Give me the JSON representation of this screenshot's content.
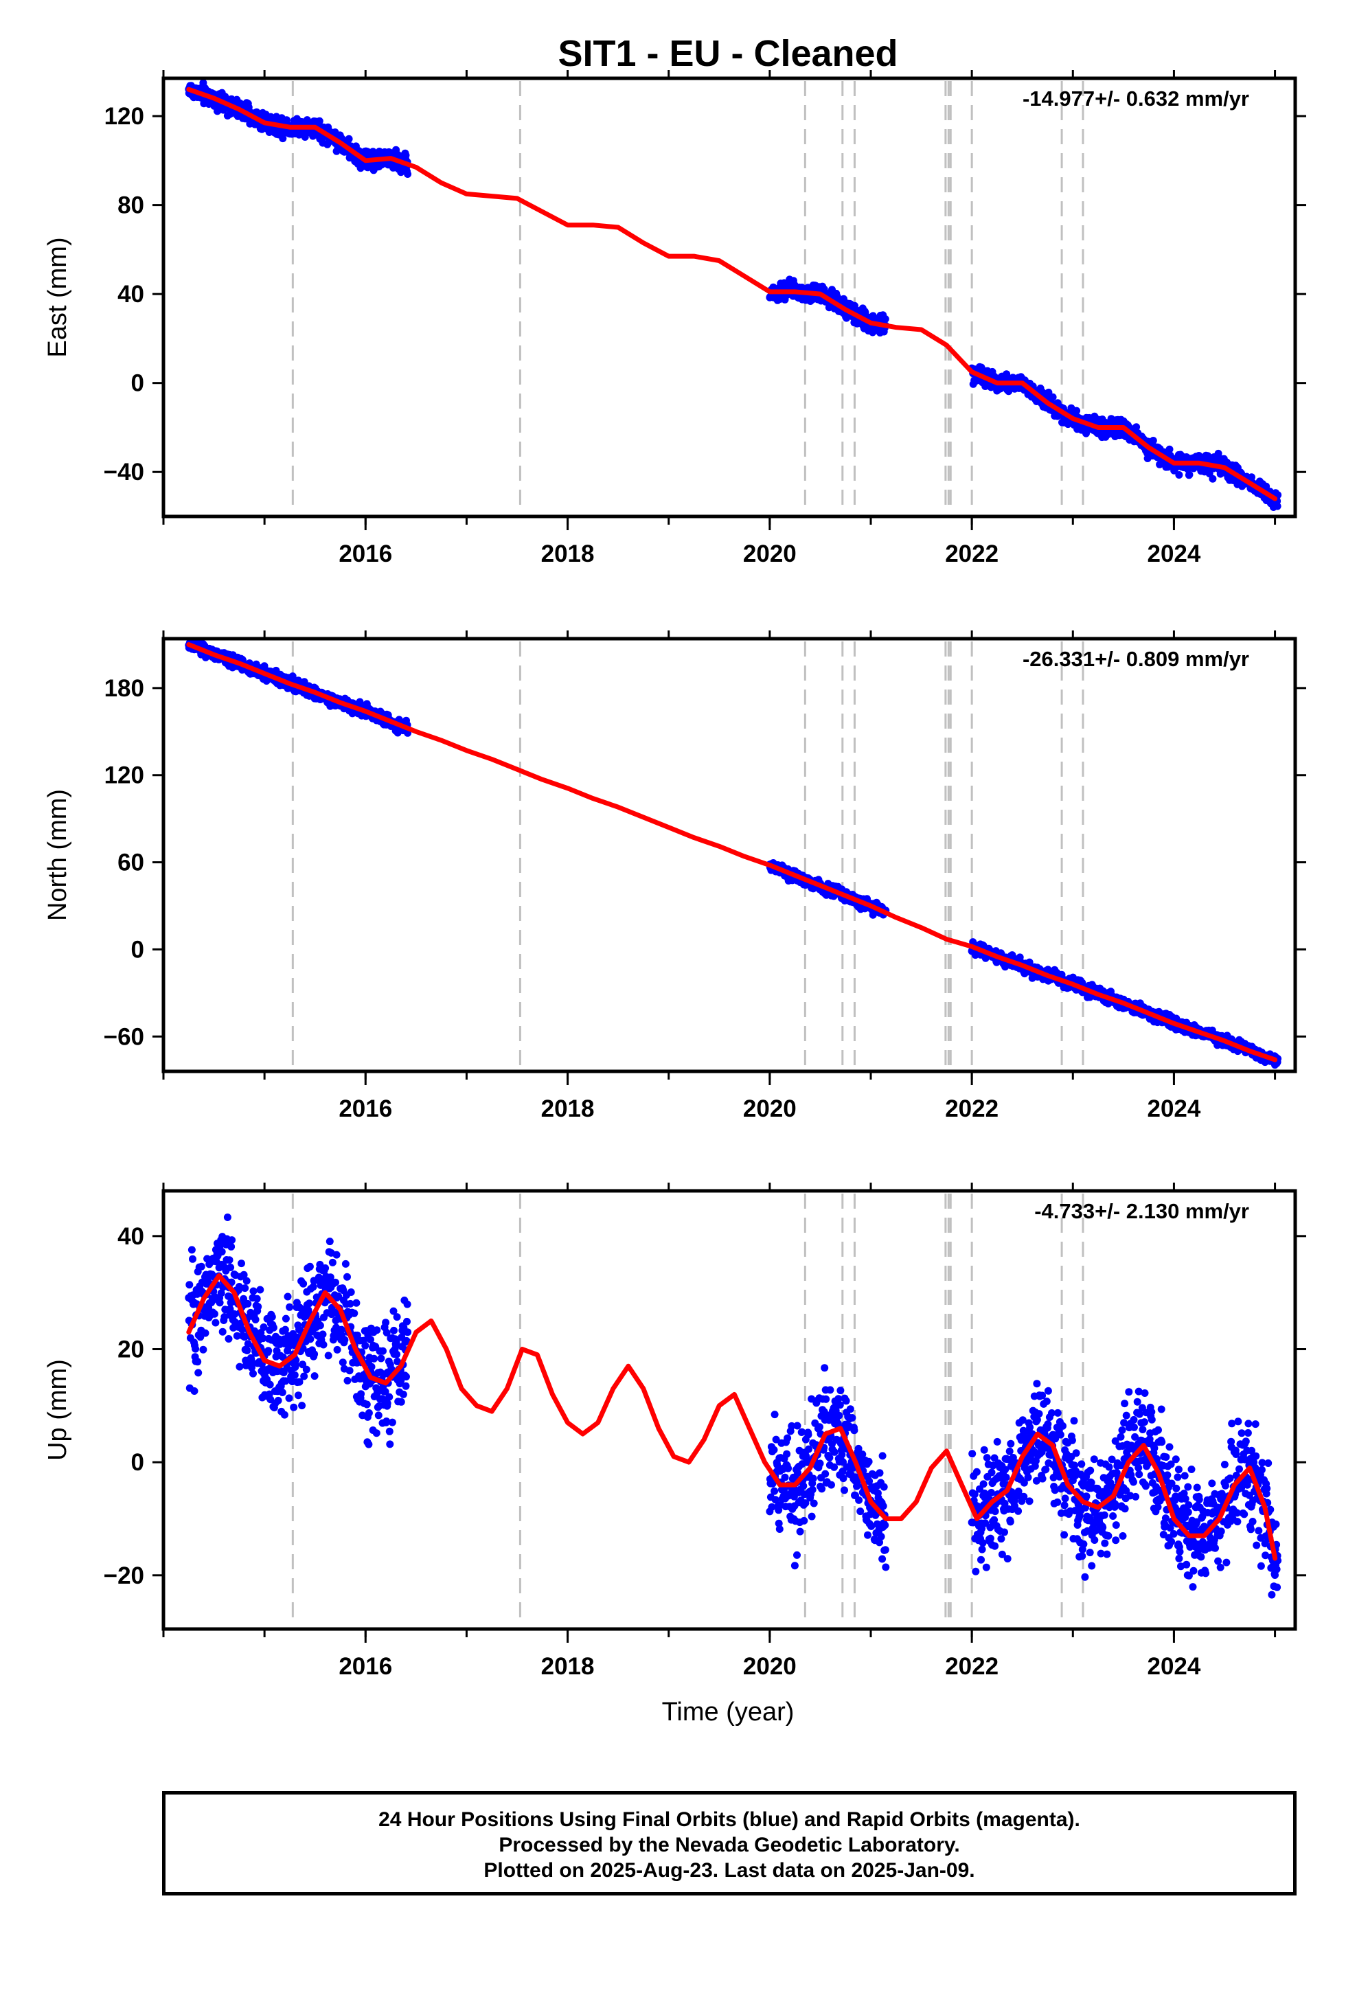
{
  "title": "SIT1  - EU - Cleaned",
  "xlabel": "Time (year)",
  "footer": {
    "line1": "24 Hour Positions Using Final Orbits (blue) and Rapid Orbits (magenta).",
    "line2": "Processed by the Nevada Geodetic Laboratory.",
    "line3": "Plotted on 2025-Aug-23. Last data on 2025-Jan-09."
  },
  "colors": {
    "data": "#0000ff",
    "model": "#ff0000",
    "events": "#c0c0c0"
  },
  "chart_data": [
    {
      "type": "scatter",
      "component": "East",
      "ylabel": "East (mm)",
      "rate_label": "-14.977+/- 0.632 mm/yr",
      "xlim": [
        2014.0,
        2025.2
      ],
      "ylim": [
        -60,
        137
      ],
      "yticks": [
        -40,
        0,
        40,
        80,
        120
      ],
      "xticks": [
        2016,
        2018,
        2020,
        2022,
        2024
      ],
      "xtick_labels": [
        "2016",
        "2018",
        "2020",
        "2022",
        "2024"
      ],
      "event_lines": [
        2015.28,
        2017.53,
        2020.35,
        2020.72,
        2020.84,
        2021.74,
        2021.77,
        2021.79,
        2022.0,
        2022.89,
        2023.1
      ],
      "data_segments": [
        [
          2014.25,
          2016.42,
          2.0
        ],
        [
          2020.0,
          2021.15,
          2.0
        ],
        [
          2022.0,
          2025.03,
          2.0
        ]
      ],
      "model_curve": {
        "x": [
          2014.25,
          2014.5,
          2014.75,
          2015.0,
          2015.25,
          2015.5,
          2015.75,
          2016.0,
          2016.25,
          2016.5,
          2016.75,
          2017.0,
          2017.25,
          2017.5,
          2017.75,
          2018.0,
          2018.25,
          2018.5,
          2018.75,
          2019.0,
          2019.25,
          2019.5,
          2019.75,
          2020.0,
          2020.25,
          2020.5,
          2020.75,
          2021.0,
          2021.25,
          2021.5,
          2021.75,
          2022.0,
          2022.25,
          2022.5,
          2022.75,
          2023.0,
          2023.25,
          2023.5,
          2023.75,
          2024.0,
          2024.25,
          2024.5,
          2024.75,
          2025.0
        ],
        "y": [
          132,
          128,
          123,
          117,
          115,
          115,
          108,
          100,
          101,
          97,
          90,
          85,
          84,
          83,
          77,
          71,
          71,
          70,
          63,
          57,
          57,
          55,
          48,
          41,
          41,
          40,
          33,
          27,
          25,
          24,
          17,
          5,
          0,
          0,
          -9,
          -16,
          -20,
          -20,
          -29,
          -36,
          -36,
          -38,
          -45,
          -52
        ]
      }
    },
    {
      "type": "scatter",
      "component": "North",
      "ylabel": "North (mm)",
      "rate_label": "-26.331+/- 0.809 mm/yr",
      "xlim": [
        2014.0,
        2025.2
      ],
      "ylim": [
        -84,
        214
      ],
      "yticks": [
        -60,
        0,
        60,
        120,
        180
      ],
      "xticks": [
        2016,
        2018,
        2020,
        2022,
        2024
      ],
      "xtick_labels": [
        "2016",
        "2018",
        "2020",
        "2022",
        "2024"
      ],
      "event_lines": [
        2015.28,
        2017.53,
        2020.35,
        2020.72,
        2020.84,
        2021.74,
        2021.77,
        2021.79,
        2022.0,
        2022.89,
        2023.1
      ],
      "data_segments": [
        [
          2014.25,
          2016.42,
          2.0
        ],
        [
          2020.0,
          2021.15,
          2.0
        ],
        [
          2022.0,
          2025.03,
          2.0
        ]
      ],
      "model_curve": {
        "x": [
          2014.25,
          2014.5,
          2014.75,
          2015.0,
          2015.25,
          2015.5,
          2015.75,
          2016.0,
          2016.25,
          2016.5,
          2016.75,
          2017.0,
          2017.25,
          2017.5,
          2017.75,
          2018.0,
          2018.25,
          2018.5,
          2018.75,
          2019.0,
          2019.25,
          2019.5,
          2019.75,
          2020.0,
          2020.25,
          2020.5,
          2020.75,
          2021.0,
          2021.25,
          2021.5,
          2021.75,
          2022.0,
          2022.25,
          2022.5,
          2022.75,
          2023.0,
          2023.25,
          2023.5,
          2023.75,
          2024.0,
          2024.25,
          2024.5,
          2024.75,
          2025.0
        ],
        "y": [
          210,
          203,
          197,
          190,
          183,
          177,
          170,
          164,
          157,
          150,
          144,
          137,
          131,
          124,
          117,
          111,
          104,
          98,
          91,
          84,
          77,
          71,
          64,
          58,
          51,
          44,
          37,
          30,
          22,
          15,
          7,
          2,
          -5,
          -11,
          -18,
          -24,
          -31,
          -37,
          -44,
          -51,
          -57,
          -63,
          -70,
          -76
        ]
      }
    },
    {
      "type": "scatter",
      "component": "Up",
      "ylabel": "Up (mm)",
      "rate_label": "-4.733+/- 2.130 mm/yr",
      "xlim": [
        2014.0,
        2025.2
      ],
      "ylim": [
        -29.5,
        48
      ],
      "yticks": [
        -20,
        0,
        20,
        40
      ],
      "xticks": [
        2016,
        2018,
        2020,
        2022,
        2024
      ],
      "xtick_labels": [
        "2016",
        "2018",
        "2020",
        "2022",
        "2024"
      ],
      "event_lines": [
        2015.28,
        2017.53,
        2020.35,
        2020.72,
        2020.84,
        2021.74,
        2021.77,
        2021.79,
        2022.0,
        2022.89,
        2023.1
      ],
      "data_segments": [
        [
          2014.25,
          2016.42,
          5.0
        ],
        [
          2020.0,
          2021.15,
          4.5
        ],
        [
          2022.0,
          2025.03,
          4.5
        ]
      ],
      "model_curve": {
        "x": [
          2014.25,
          2014.4,
          2014.55,
          2014.7,
          2014.85,
          2015.0,
          2015.15,
          2015.3,
          2015.45,
          2015.6,
          2015.75,
          2015.9,
          2016.05,
          2016.2,
          2016.35,
          2016.5,
          2016.65,
          2016.8,
          2016.95,
          2017.1,
          2017.25,
          2017.4,
          2017.55,
          2017.7,
          2017.85,
          2018.0,
          2018.15,
          2018.3,
          2018.45,
          2018.6,
          2018.75,
          2018.9,
          2019.05,
          2019.2,
          2019.35,
          2019.5,
          2019.65,
          2019.8,
          2019.95,
          2020.1,
          2020.25,
          2020.4,
          2020.55,
          2020.7,
          2020.85,
          2021.0,
          2021.15,
          2021.3,
          2021.45,
          2021.6,
          2021.75,
          2021.9,
          2022.05,
          2022.2,
          2022.35,
          2022.5,
          2022.65,
          2022.8,
          2022.95,
          2023.1,
          2023.25,
          2023.4,
          2023.55,
          2023.7,
          2023.85,
          2024.0,
          2024.15,
          2024.3,
          2024.45,
          2024.6,
          2024.75,
          2024.9,
          2025.0
        ],
        "y": [
          23,
          29,
          33,
          30,
          23,
          18,
          17,
          19,
          25,
          30,
          27,
          20,
          15,
          14,
          17,
          23,
          25,
          20,
          13,
          10,
          9,
          13,
          20,
          19,
          12,
          7,
          5,
          7,
          13,
          17,
          13,
          6,
          1,
          0,
          4,
          10,
          12,
          6,
          0,
          -4,
          -4,
          -1,
          5,
          6,
          0,
          -7,
          -10,
          -10,
          -7,
          -1,
          2,
          -4,
          -10,
          -7,
          -5,
          1,
          5,
          3,
          -4,
          -7,
          -8,
          -6,
          0,
          3,
          -2,
          -10,
          -13,
          -13,
          -10,
          -4,
          -1,
          -8,
          -17
        ]
      }
    }
  ]
}
